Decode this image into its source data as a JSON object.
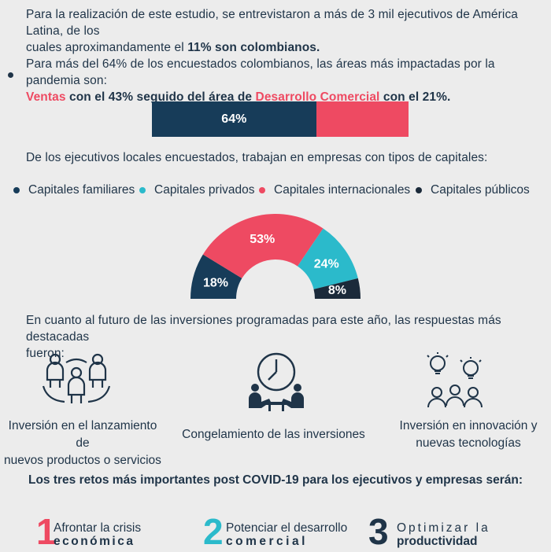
{
  "intro": {
    "line1": "Para la realización de este estudio, se entrevistaron a más de 3 mil ejecutivos de América Latina, de los",
    "line2_plain": "cuales aproximandamente el ",
    "line2_bold": "11% son colombianos."
  },
  "areas": {
    "line1": "Para más del 64% de los encuestados colombianos, las áreas más impactadas por la pandemia son:",
    "ventas": "Ventas",
    "mid": " con el 43%  seguido del área de ",
    "desarrollo": "Desarrollo Comercial",
    "end": " con el 21%."
  },
  "capitales_intro": "De los ejecutivos locales encuestados, trabajan en empresas con tipos de capitales:",
  "inversiones_intro": {
    "line1": "En cuanto al futuro de las inversiones programadas para este año, las respuestas más destacadas",
    "line2": "fueron:"
  },
  "inversiones": [
    {
      "line1": "Inversión en el lanzamiento de",
      "line2": "nuevos productos o servicios",
      "icon": "people-network-icon"
    },
    {
      "line1": "Congelamiento de las inversiones",
      "line2": "",
      "icon": "clock-meeting-icon"
    },
    {
      "line1": "Inversión en innovación y",
      "line2": "nuevas tecnologías",
      "icon": "ideas-team-icon"
    }
  ],
  "retos_title": "Los tres retos más importantes post COVID-19 para los ejecutivos y empresas serán:",
  "retos": [
    {
      "num": "1",
      "line1": "Afrontar la crisis",
      "line2": "económica",
      "color": "#ee4a62"
    },
    {
      "num": "2",
      "line1": "Potenciar el desarrollo",
      "line2": "comercial",
      "color": "#2bbacb"
    },
    {
      "num": "3",
      "line1": "Optimizar la",
      "line2": "productividad",
      "color": "#1f3448"
    }
  ],
  "colors": {
    "dark_navy": "#173c59",
    "red": "#ee4a62",
    "teal": "#2bbacb",
    "black_navy": "#1b2a3a"
  },
  "chart_data": [
    {
      "type": "bar",
      "categories": [
        "",
        ""
      ],
      "values": [
        64,
        36
      ],
      "labels": [
        "64%",
        ""
      ],
      "colors": [
        "#173c59",
        "#ee4a62"
      ]
    },
    {
      "type": "pie",
      "categories": [
        "Capitales familiares",
        "Capitales privados",
        "Capitales internacionales",
        "Capitales públicos"
      ],
      "values": [
        18,
        24,
        53,
        8
      ],
      "labels": [
        "18%",
        "24%",
        "53%",
        "8%"
      ],
      "colors": [
        "#173c59",
        "#2bbacb",
        "#ee4a62",
        "#1b2a3a"
      ],
      "order": [
        "Capitales familiares",
        "Capitales internacionales",
        "Capitales privados",
        "Capitales públicos"
      ],
      "legend": "top"
    }
  ]
}
